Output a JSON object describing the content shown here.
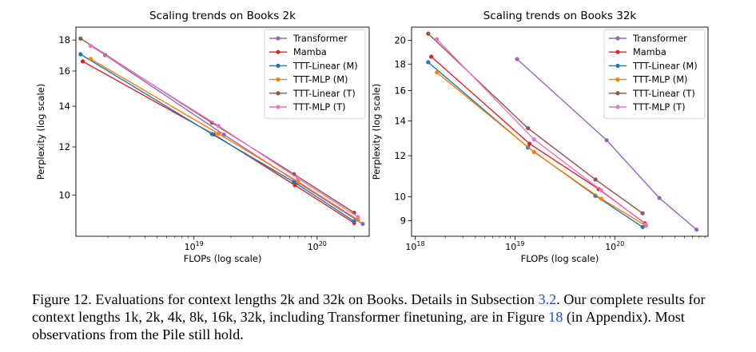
{
  "chart_data": [
    {
      "type": "line",
      "title": "Scaling trends on Books 2k",
      "xlabel": "FLOPs (log scale)",
      "ylabel": "Perplexity (log scale)",
      "xscale": "log",
      "yscale": "log",
      "xlim": [
        1.1e+18,
        2.65e+20
      ],
      "ylim": [
        8.55,
        18.9
      ],
      "xticks": [
        {
          "value": 1e+19,
          "base": "10",
          "exp": "19"
        },
        {
          "value": 1e+20,
          "base": "10",
          "exp": "20"
        }
      ],
      "yticks": [
        {
          "value": 10,
          "label": "10"
        },
        {
          "value": 12,
          "label": "12"
        },
        {
          "value": 14,
          "label": "14"
        },
        {
          "value": 16,
          "label": "16"
        },
        {
          "value": 18,
          "label": "18"
        }
      ],
      "legend_position": "top-right",
      "series": [
        {
          "name": "Transformer",
          "color": "#9467bd",
          "x": [
            1.9e+18,
            1.75e+19,
            7e+19,
            2.35e+20
          ],
          "y": [
            17.0,
            12.57,
            10.48,
            8.96
          ]
        },
        {
          "name": "Mamba",
          "color": "#d62728",
          "x": [
            1.25e+18,
            1.45e+19,
            6.6e+19,
            2e+20
          ],
          "y": [
            16.6,
            12.58,
            10.38,
            8.99
          ]
        },
        {
          "name": "TTT-Linear (M)",
          "color": "#1f77b4",
          "x": [
            1.2e+18,
            1.4e+19,
            6.5e+19,
            2e+20
          ],
          "y": [
            17.05,
            12.6,
            10.5,
            9.05
          ]
        },
        {
          "name": "TTT-MLP (M)",
          "color": "#ff7f0e",
          "x": [
            1.45e+18,
            1.58e+19,
            7e+19,
            2.15e+20
          ],
          "y": [
            16.75,
            12.62,
            10.52,
            9.1
          ]
        },
        {
          "name": "TTT-Linear (T)",
          "color": "#8c564b",
          "x": [
            1.2e+18,
            1.4e+19,
            6.5e+19,
            2e+20
          ],
          "y": [
            18.1,
            13.15,
            10.82,
            9.35
          ]
        },
        {
          "name": "TTT-MLP (T)",
          "color": "#e377c2",
          "x": [
            1.45e+18,
            1.58e+19,
            7e+19,
            2.15e+20
          ],
          "y": [
            17.6,
            13.0,
            10.65,
            9.2
          ]
        }
      ]
    },
    {
      "type": "line",
      "title": "Scaling trends on Books 32k",
      "xlabel": "FLOPs (log scale)",
      "ylabel": "Perplexity (log scale)",
      "xscale": "log",
      "yscale": "log",
      "xlim": [
        9.2e+17,
        8.6e+20
      ],
      "ylim": [
        8.4,
        21.2
      ],
      "xticks": [
        {
          "value": 1e+18,
          "base": "10",
          "exp": "18"
        },
        {
          "value": 1e+19,
          "base": "10",
          "exp": "19"
        },
        {
          "value": 1e+20,
          "base": "10",
          "exp": "20"
        }
      ],
      "yticks": [
        {
          "value": 9,
          "label": "9"
        },
        {
          "value": 10,
          "label": "10"
        },
        {
          "value": 12,
          "label": "12"
        },
        {
          "value": 14,
          "label": "14"
        },
        {
          "value": 16,
          "label": "16"
        },
        {
          "value": 18,
          "label": "18"
        },
        {
          "value": 20,
          "label": "20"
        }
      ],
      "legend_position": "top-right",
      "series": [
        {
          "name": "Transformer",
          "color": "#9467bd",
          "x": [
            1.05e+19,
            8.3e+19,
            2.8e+20,
            6.6e+20
          ],
          "y": [
            18.4,
            12.85,
            9.95,
            8.65
          ]
        },
        {
          "name": "Mamba",
          "color": "#d62728",
          "x": [
            1.45e+18,
            1.4e+19,
            6.9e+19,
            2e+20
          ],
          "y": [
            18.6,
            12.65,
            10.35,
            8.9
          ]
        },
        {
          "name": "TTT-Linear (M)",
          "color": "#1f77b4",
          "x": [
            1.35e+18,
            1.35e+19,
            6.4e+19,
            1.9e+20
          ],
          "y": [
            18.15,
            12.45,
            10.05,
            8.75
          ]
        },
        {
          "name": "TTT-MLP (M)",
          "color": "#ff7f0e",
          "x": [
            1.65e+18,
            1.55e+19,
            7.3e+19,
            2.05e+20
          ],
          "y": [
            17.35,
            12.2,
            9.92,
            8.8
          ]
        },
        {
          "name": "TTT-Linear (T)",
          "color": "#8c564b",
          "x": [
            1.35e+18,
            1.35e+19,
            6.4e+19,
            1.9e+20
          ],
          "y": [
            20.6,
            13.55,
            10.8,
            9.3
          ]
        },
        {
          "name": "TTT-MLP (T)",
          "color": "#e377c2",
          "x": [
            1.65e+18,
            1.55e+19,
            7.3e+19,
            2.05e+20
          ],
          "y": [
            20.1,
            12.9,
            10.3,
            8.85
          ]
        }
      ]
    }
  ],
  "caption": {
    "text_before_1": "Figure 12. Evaluations for context lengths 2k and 32k on Books. Details in Subsection ",
    "link_1": "3.2",
    "text_between": ". Our complete results for context lengths 1k, 2k, 4k, 8k, 16k, 32k, including Transformer finetuning, are in Figure ",
    "link_2": "18",
    "text_after": " (in Appendix). Most observations from the Pile still hold."
  }
}
